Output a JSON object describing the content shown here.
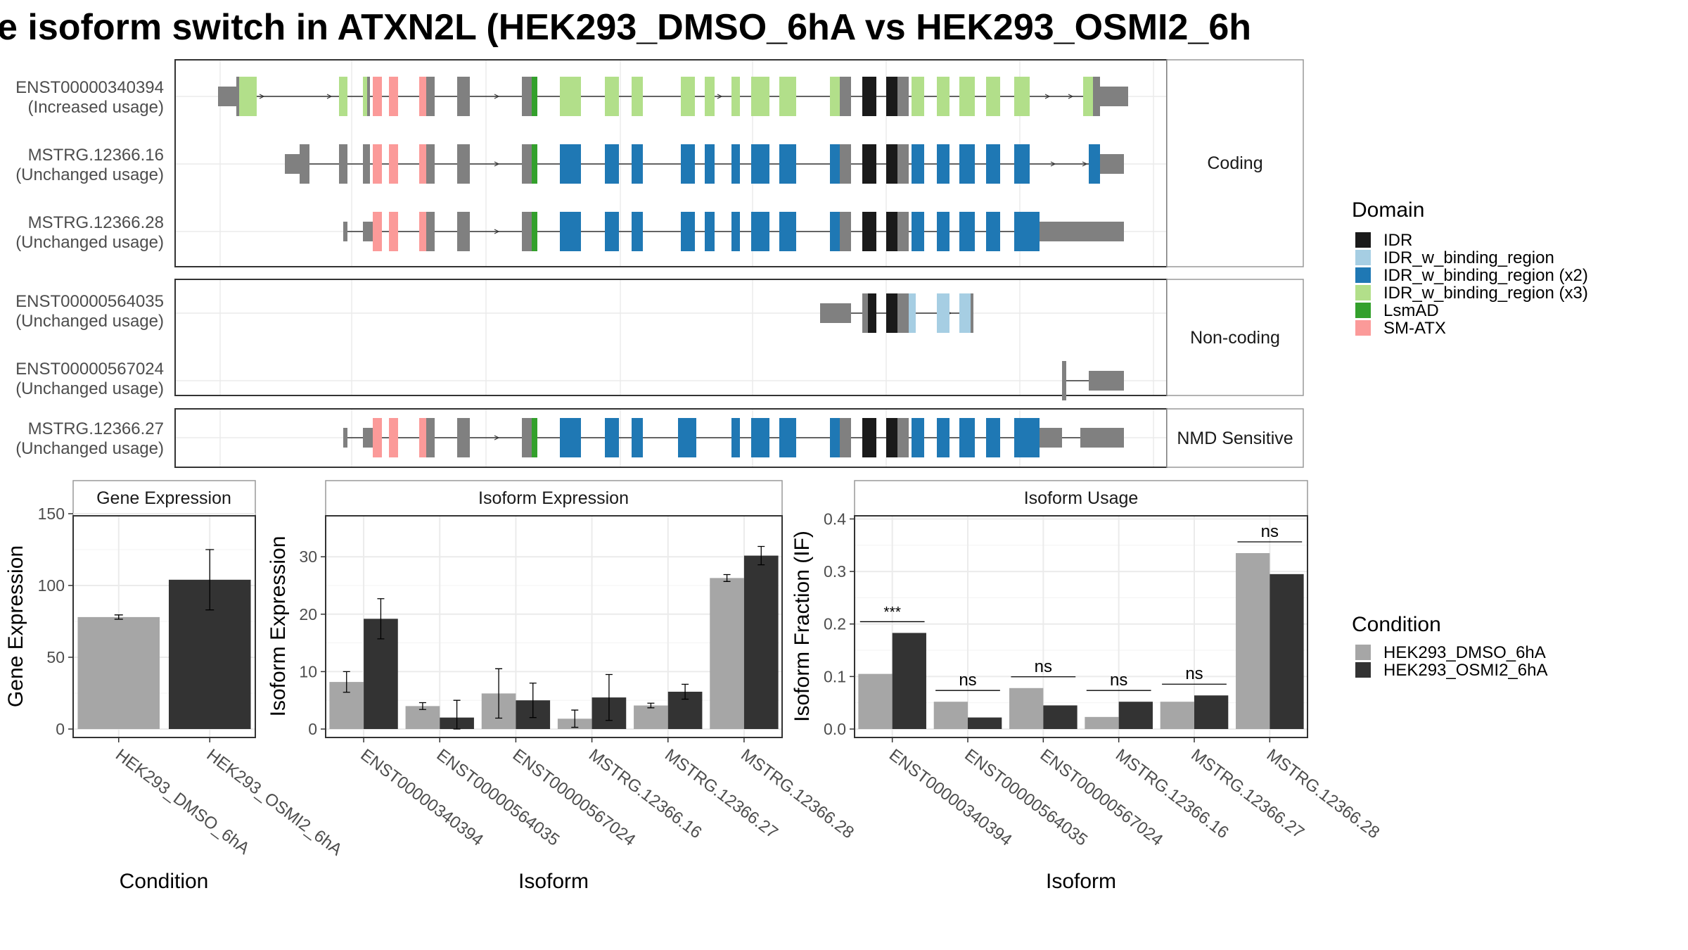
{
  "title": "e isoform switch in ATXN2L (HEK293_DMSO_6hA vs HEK293_OSMI2_6h",
  "colors": {
    "IDR": "#1a1a1a",
    "IDR_w_binding_region": "#a6cee3",
    "IDR_w_binding_region (x2)": "#1f78b4",
    "IDR_w_binding_region (x3)": "#b2df8a",
    "LsmAD": "#33a02c",
    "SM-ATX": "#fb9a99",
    "exon": "#808080",
    "DMSO": "#a6a6a6",
    "OSMI2": "#333333"
  },
  "structure": {
    "facets": [
      {
        "label": "Coding",
        "transcripts": [
          {
            "id": "ENST00000340394",
            "usage": "(Increased usage)"
          },
          {
            "id": "MSTRG.12366.16",
            "usage": "(Unchanged usage)"
          },
          {
            "id": "MSTRG.12366.28",
            "usage": "(Unchanged usage)"
          }
        ]
      },
      {
        "label": "Non-coding",
        "transcripts": [
          {
            "id": "ENST00000564035",
            "usage": "(Unchanged usage)"
          },
          {
            "id": "ENST00000567024",
            "usage": "(Unchanged usage)"
          }
        ]
      },
      {
        "label": "NMD Sensitive",
        "transcripts": [
          {
            "id": "MSTRG.12366.27",
            "usage": "(Unchanged usage)"
          }
        ]
      }
    ],
    "domain_legend": {
      "title": "Domain",
      "items": [
        "IDR",
        "IDR_w_binding_region",
        "IDR_w_binding_region (x2)",
        "IDR_w_binding_region (x3)",
        "LsmAD",
        "SM-ATX"
      ]
    }
  },
  "chart_data": [
    {
      "type": "bar",
      "title": "Gene Expression",
      "xlabel": "Condition",
      "ylabel": "Gene Expression",
      "ylim": [
        0,
        150
      ],
      "yticks": [
        0,
        50,
        100,
        150
      ],
      "categories": [
        "HEK293_DMSO_6hA",
        "HEK293_OSMI2_6hA"
      ],
      "values": [
        78,
        104
      ],
      "error": [
        1.5,
        21
      ],
      "grid": true
    },
    {
      "type": "bar",
      "title": "Isoform Expression",
      "xlabel": "Isoform",
      "ylabel": "Isoform Expression",
      "ylim": [
        0,
        37.5
      ],
      "yticks": [
        0,
        10,
        20,
        30
      ],
      "categories": [
        "ENST00000340394",
        "ENST00000564035",
        "ENST00000567024",
        "MSTRG.12366.16",
        "MSTRG.12366.27",
        "MSTRG.12366.28"
      ],
      "series": [
        {
          "name": "HEK293_DMSO_6hA",
          "values": [
            8.2,
            4.0,
            6.2,
            1.8,
            4.1,
            26.3
          ],
          "error": [
            1.8,
            0.6,
            4.3,
            1.5,
            0.4,
            0.6
          ]
        },
        {
          "name": "HEK293_OSMI2_6hA",
          "values": [
            19.2,
            2.0,
            5.0,
            5.5,
            6.5,
            30.2
          ],
          "error": [
            3.5,
            3.0,
            3.0,
            4.0,
            1.3,
            1.6
          ]
        }
      ],
      "grid": true
    },
    {
      "type": "bar",
      "title": "Isoform Usage",
      "xlabel": "Isoform",
      "ylabel": "Isoform Fraction (IF)",
      "ylim": [
        0,
        0.41
      ],
      "yticks": [
        0.0,
        0.1,
        0.2,
        0.3,
        0.4
      ],
      "ytick_labels": [
        "0.0",
        "0.1",
        "0.2",
        "0.3",
        "0.4"
      ],
      "categories": [
        "ENST00000340394",
        "ENST00000564035",
        "ENST00000567024",
        "MSTRG.12366.16",
        "MSTRG.12366.27",
        "MSTRG.12366.28"
      ],
      "series": [
        {
          "name": "HEK293_DMSO_6hA",
          "values": [
            0.105,
            0.052,
            0.078,
            0.023,
            0.052,
            0.335
          ]
        },
        {
          "name": "HEK293_OSMI2_6hA",
          "values": [
            0.183,
            0.022,
            0.045,
            0.052,
            0.064,
            0.295
          ]
        }
      ],
      "significance": [
        "***",
        "ns",
        "ns",
        "ns",
        "ns",
        "ns"
      ],
      "grid": true
    }
  ],
  "condition_legend": {
    "title": "Condition",
    "items": [
      "HEK293_DMSO_6hA",
      "HEK293_OSMI2_6hA"
    ]
  }
}
